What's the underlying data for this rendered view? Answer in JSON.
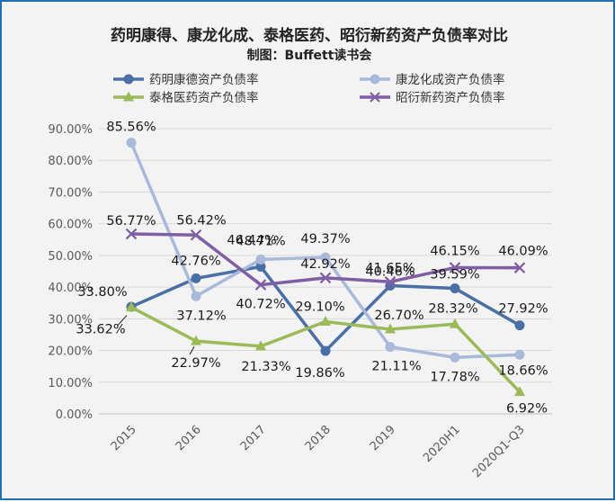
{
  "chart_data": {
    "type": "line",
    "title": "药明康得、康龙化成、泰格医药、昭衍新药资产负债率对比",
    "subtitle": "制图：Buffett读书会",
    "xlabel": "",
    "ylabel": "",
    "ylim": [
      0,
      90
    ],
    "y_ticks": [
      "0.00%",
      "10.00%",
      "20.00%",
      "30.00%",
      "40.00%",
      "50.00%",
      "60.00%",
      "70.00%",
      "80.00%",
      "90.00%"
    ],
    "categories": [
      "2015",
      "2016",
      "2017",
      "2018",
      "2019",
      "2020H1",
      "2020Q1-Q3"
    ],
    "grid": true,
    "legend_position": "top",
    "series": [
      {
        "name": "药明康德资产负债率",
        "color": "#4a6fa5",
        "marker": "circle",
        "values": [
          33.8,
          42.76,
          46.44,
          19.86,
          40.46,
          39.59,
          27.92
        ],
        "labels": [
          "33.80%",
          "42.76%",
          "46.44%",
          "19.86%",
          "40.46%",
          "39.59%",
          "27.92%"
        ]
      },
      {
        "name": "康龙化成资产负债率",
        "color": "#a9b9d9",
        "marker": "circle",
        "values": [
          85.56,
          37.12,
          48.71,
          49.37,
          21.11,
          17.78,
          18.66
        ],
        "labels": [
          "85.56%",
          "37.12%",
          "48.71%",
          "49.37%",
          "21.11%",
          "17.78%",
          "18.66%"
        ]
      },
      {
        "name": "泰格医药资产负债率",
        "color": "#9bbb59",
        "marker": "triangle",
        "values": [
          33.62,
          22.97,
          21.33,
          29.1,
          26.7,
          28.32,
          6.92
        ],
        "labels": [
          "33.62%",
          "22.97%",
          "21.33%",
          "29.10%",
          "26.70%",
          "28.32%",
          "6.92%"
        ]
      },
      {
        "name": "昭衍新药资产负债率",
        "color": "#7f5ea3",
        "marker": "x",
        "values": [
          56.77,
          56.42,
          40.72,
          42.92,
          41.65,
          46.15,
          46.09
        ],
        "labels": [
          "56.77%",
          "56.42%",
          "40.72%",
          "42.92%",
          "41.65%",
          "46.15%",
          "46.09%"
        ]
      }
    ]
  }
}
